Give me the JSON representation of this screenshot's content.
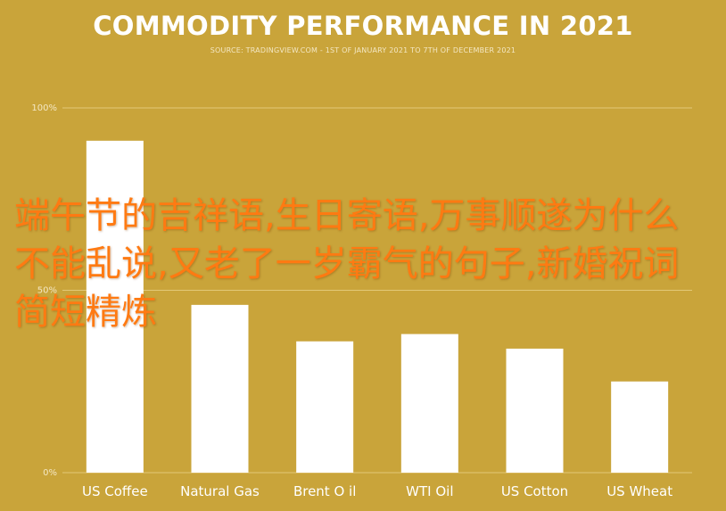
{
  "chart_data": {
    "type": "bar",
    "title": "COMMODITY PERFORMANCE IN 2021",
    "subtitle": "SOURCE: TRADINGVIEW.COM - 1ST OF JANUARY 2021 TO 7TH OF DECEMBER 2021",
    "categories": [
      "US Coffee",
      "Natural Gas",
      "Brent O il",
      "WTI Oil",
      "US Cotton",
      "US Wheat"
    ],
    "values": [
      91,
      46,
      36,
      38,
      34,
      25
    ],
    "ylim": [
      0,
      100
    ],
    "yticks": [
      0,
      50,
      100
    ],
    "ytick_labels": [
      "0%",
      "50%",
      "100%"
    ],
    "xlabel": "",
    "ylabel": "",
    "grid": true,
    "colors": {
      "background": "#c9a43a",
      "bar": "#ffffff",
      "grid": "#e2c878",
      "tick_text": "#f4e7c3",
      "category_text": "#ffffff"
    }
  },
  "overlay_text": "端午节的吉祥语,生日寄语,万事顺遂为什么不能乱说,又老了一岁霸气的句子,新婚祝词简短精炼"
}
